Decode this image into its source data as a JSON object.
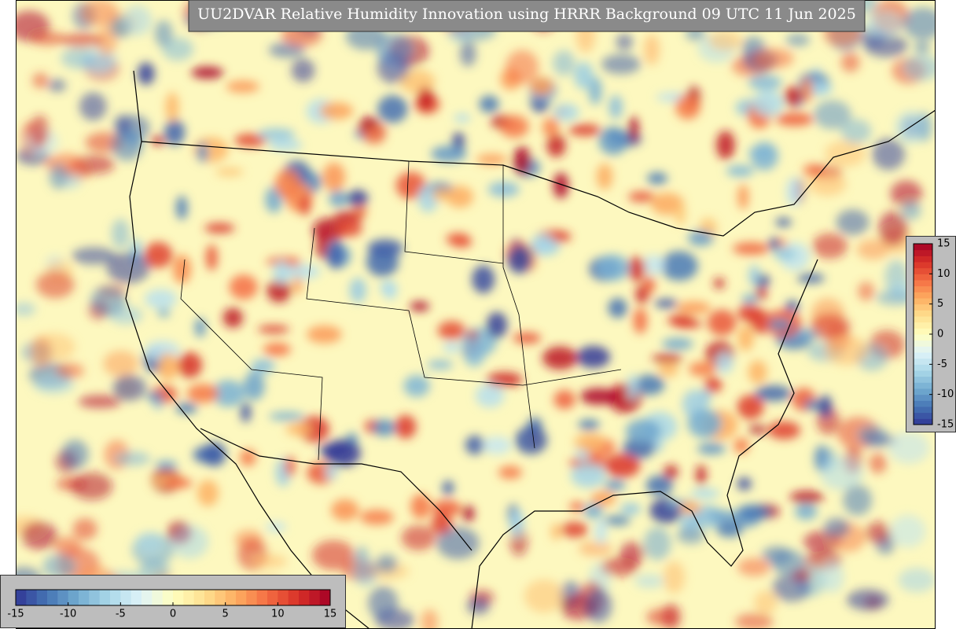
{
  "title": "UU2DVAR Relative Humidity Innovation using HRRR Background 09 UTC 11 Jun 2025",
  "colormap": [
    "#313695",
    "#4575b4",
    "#74add1",
    "#abd9e9",
    "#e0f3f8",
    "#ffffbf",
    "#fee090",
    "#fdae61",
    "#f46d43",
    "#d73027",
    "#a50026"
  ],
  "colorbars": [
    {
      "orientation": "horizontal",
      "range": [
        -15,
        15
      ],
      "ticks": [
        -15,
        -10,
        -5,
        0,
        5,
        10,
        15
      ]
    },
    {
      "orientation": "vertical",
      "range": [
        -15,
        15
      ],
      "ticks": [
        -15,
        -10,
        -5,
        0,
        5,
        10,
        15
      ]
    }
  ]
}
